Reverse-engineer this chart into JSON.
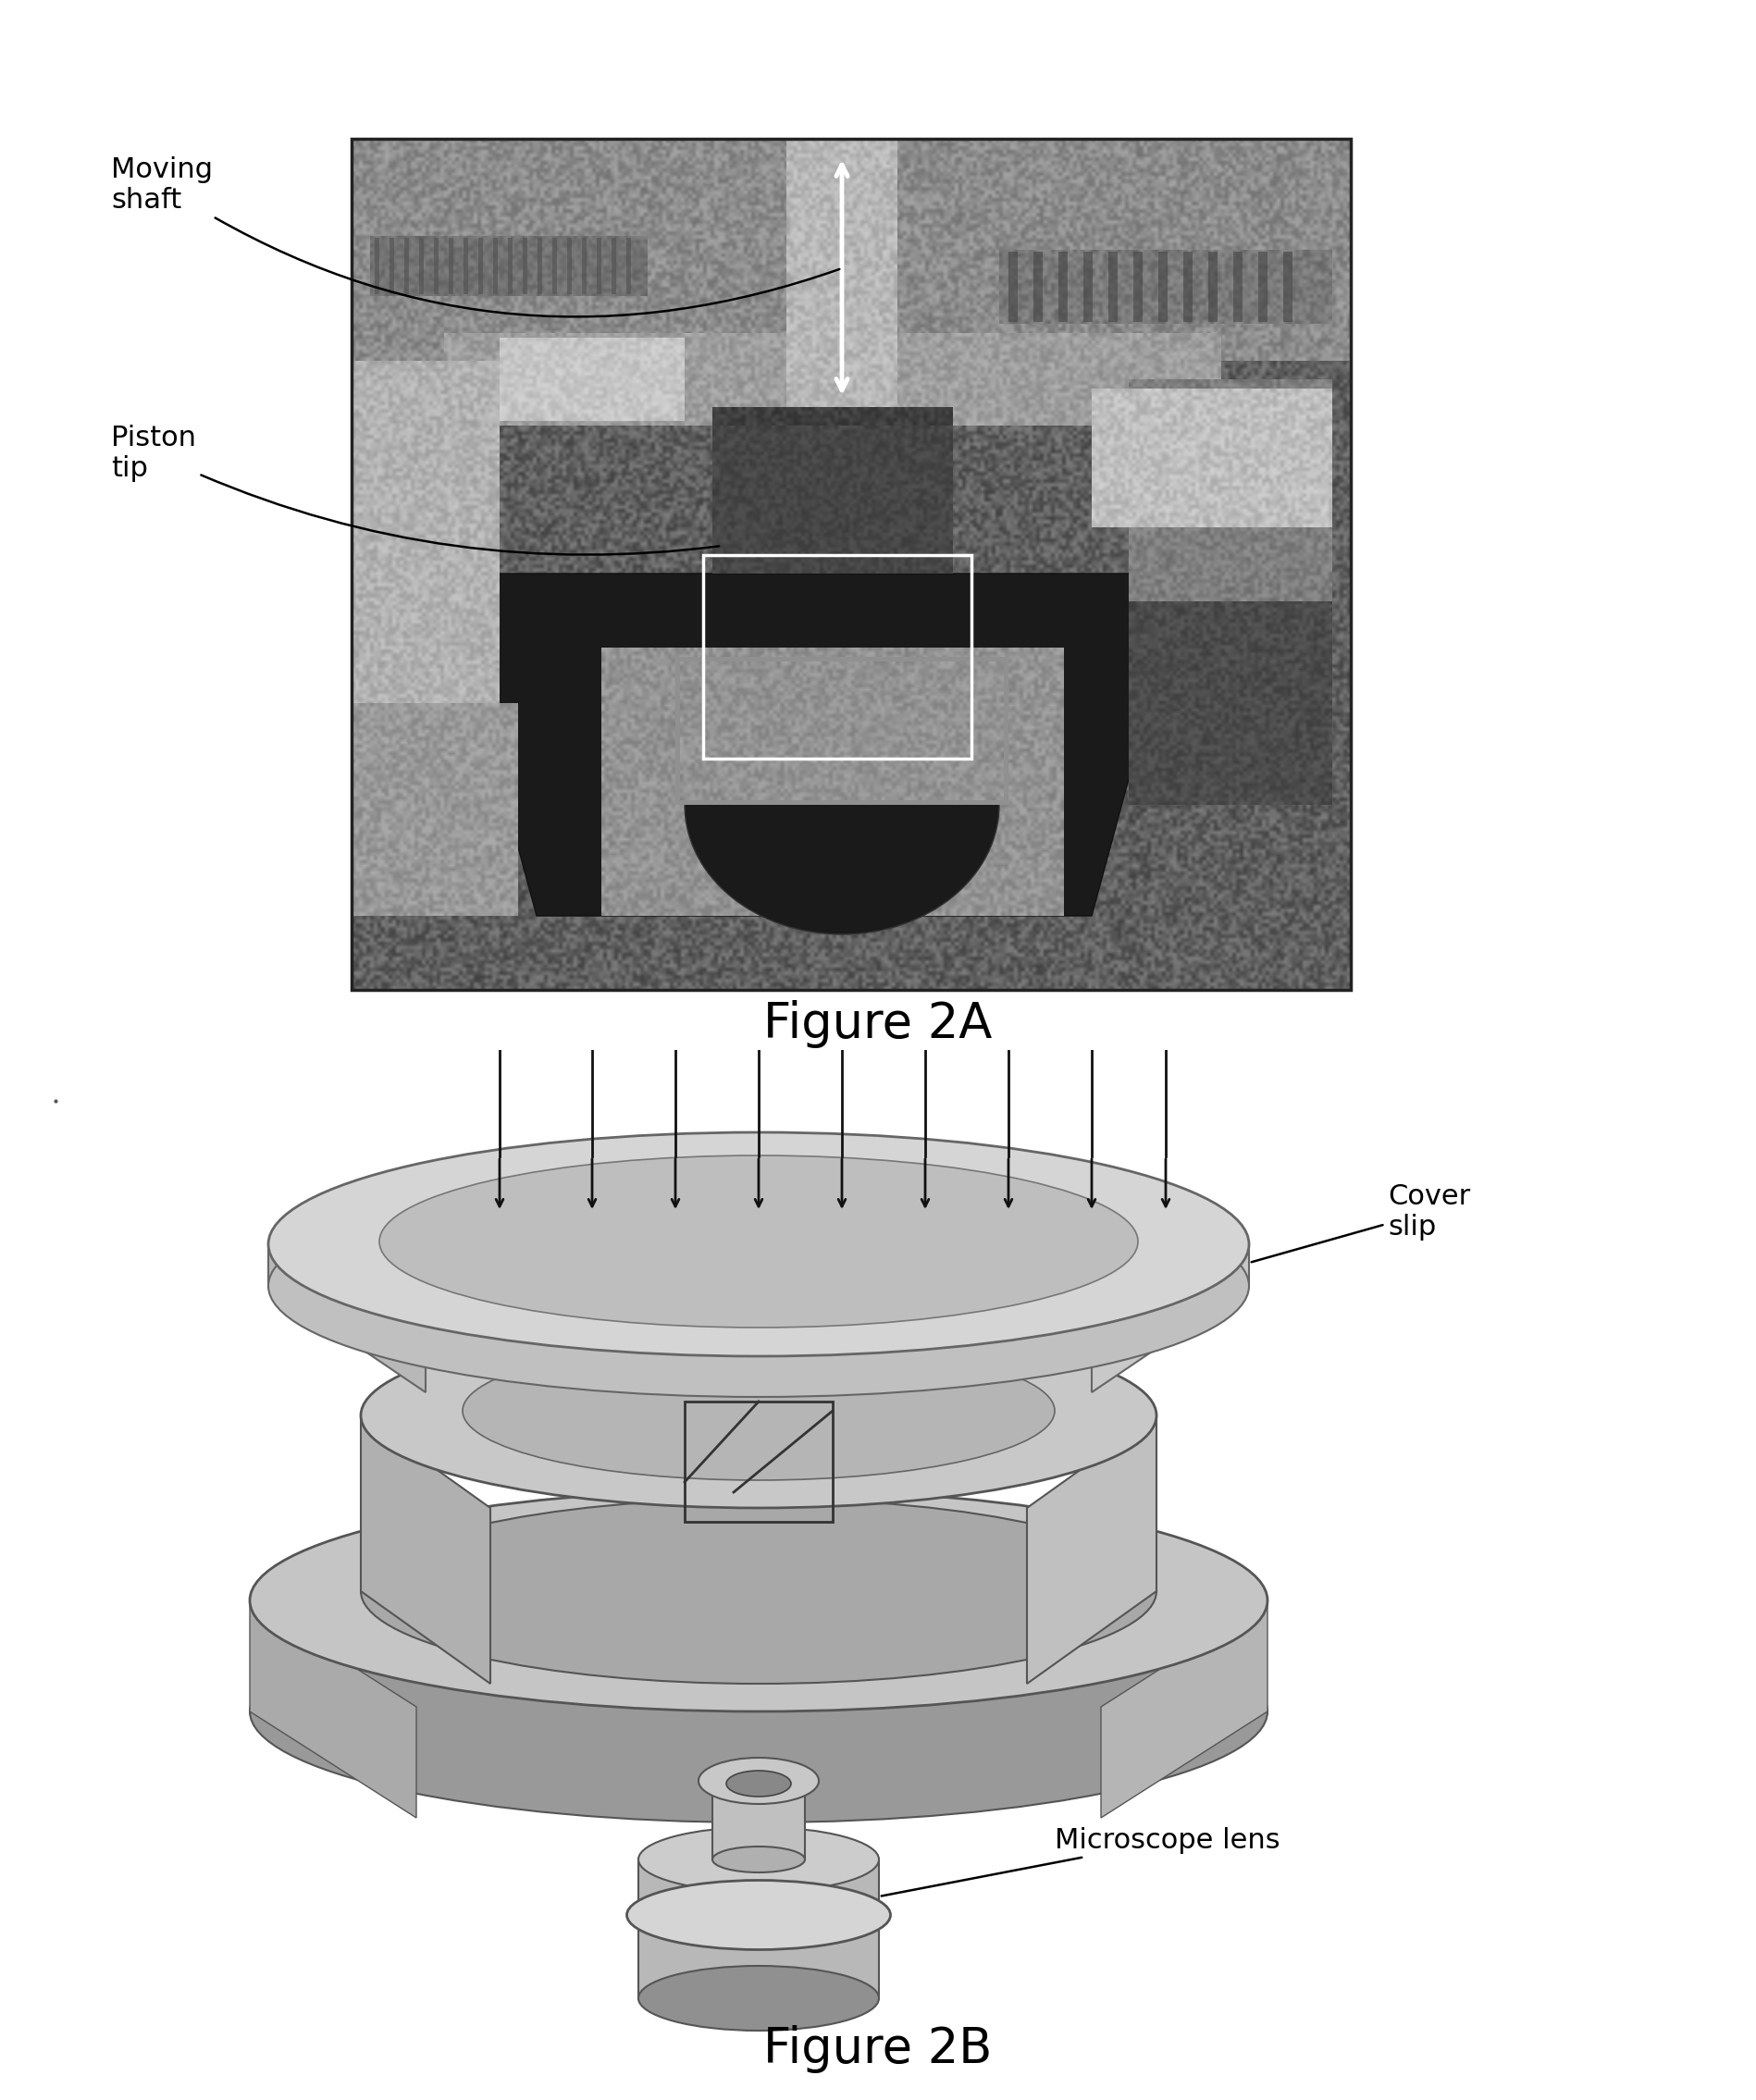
{
  "fig_title_A": "Figure 2A",
  "fig_title_B": "Figure 2B",
  "label_moving_shaft": "Moving\nshaft",
  "label_piston_tip": "Piston\ntip",
  "label_cover_slip": "Cover\nslip",
  "label_microscope_lens": "Microscope lens",
  "title_fontsize": 38,
  "label_fontsize": 22,
  "bg_color": "#ffffff",
  "figure_width": 18.99,
  "figure_height": 22.7,
  "arrow_color": "#111111"
}
